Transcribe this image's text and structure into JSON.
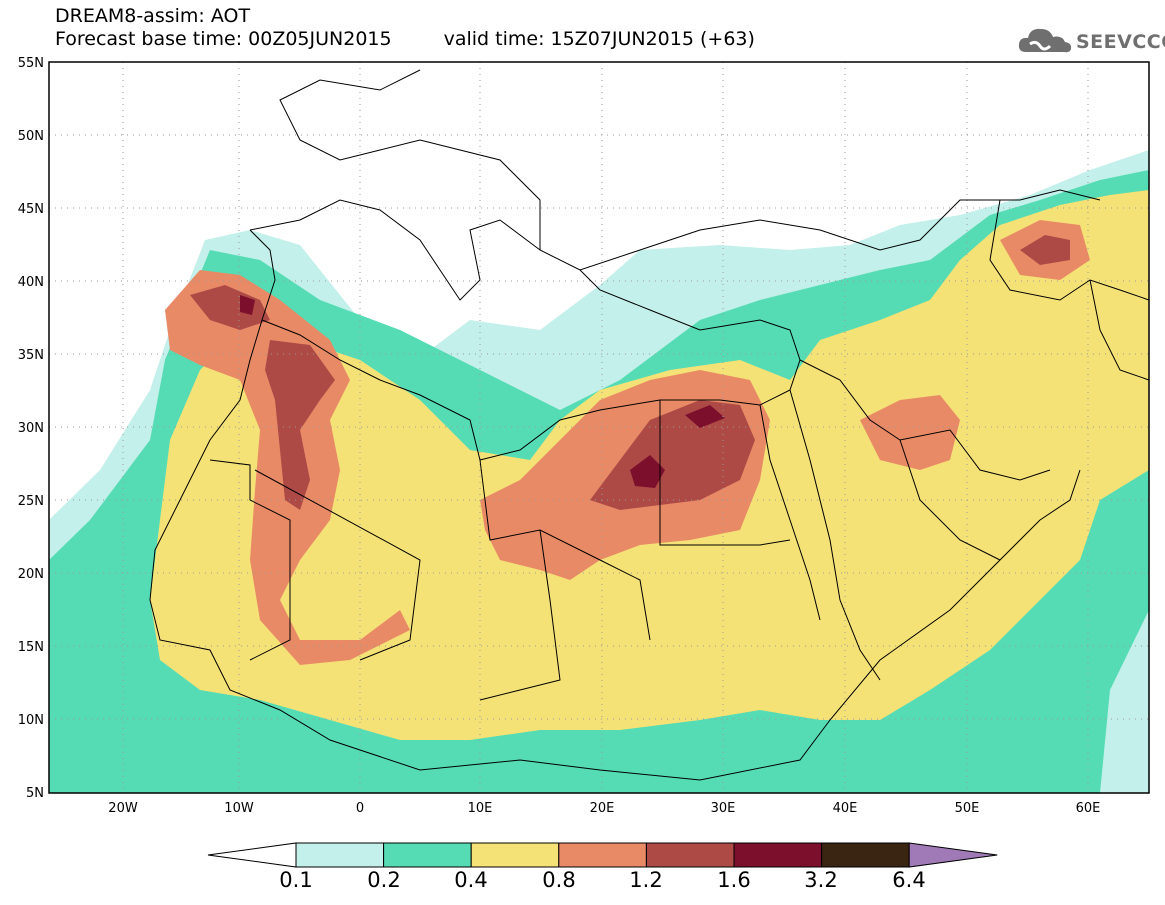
{
  "header": {
    "line1": "DREAM8-assim: AOT",
    "base_time": "Forecast base time: 00Z05JUN2015",
    "valid_time": "valid time: 15Z07JUN2015 (+63)"
  },
  "logo": {
    "text": "SEEVCCC",
    "icon": "cloud-logo-icon"
  },
  "map": {
    "type": "filled-contour",
    "variable": "AOT",
    "lon_range": [
      -25,
      65
    ],
    "lat_range": [
      5,
      55
    ],
    "lat_ticks": [
      "55N",
      "50N",
      "45N",
      "40N",
      "35N",
      "30N",
      "25N",
      "20N",
      "15N",
      "10N",
      "5N"
    ],
    "lon_ticks": [
      "20W",
      "10W",
      "0",
      "10E",
      "20E",
      "30E",
      "40E",
      "50E",
      "60E"
    ],
    "gridlines": "dotted",
    "colors": {
      "land_border": "#000000",
      "background": "#ffffff"
    }
  },
  "colorbar": {
    "levels": [
      "0.1",
      "0.2",
      "0.4",
      "0.8",
      "1.2",
      "1.6",
      "3.2",
      "6.4"
    ],
    "colors": [
      "#c3f0ea",
      "#55dcb4",
      "#f5e277",
      "#e98a66",
      "#ae4a46",
      "#7c0f2c",
      "#3a2412",
      "#9f7ab6"
    ],
    "under_color": "#ffffff",
    "over_color": "#9f7ab6"
  }
}
